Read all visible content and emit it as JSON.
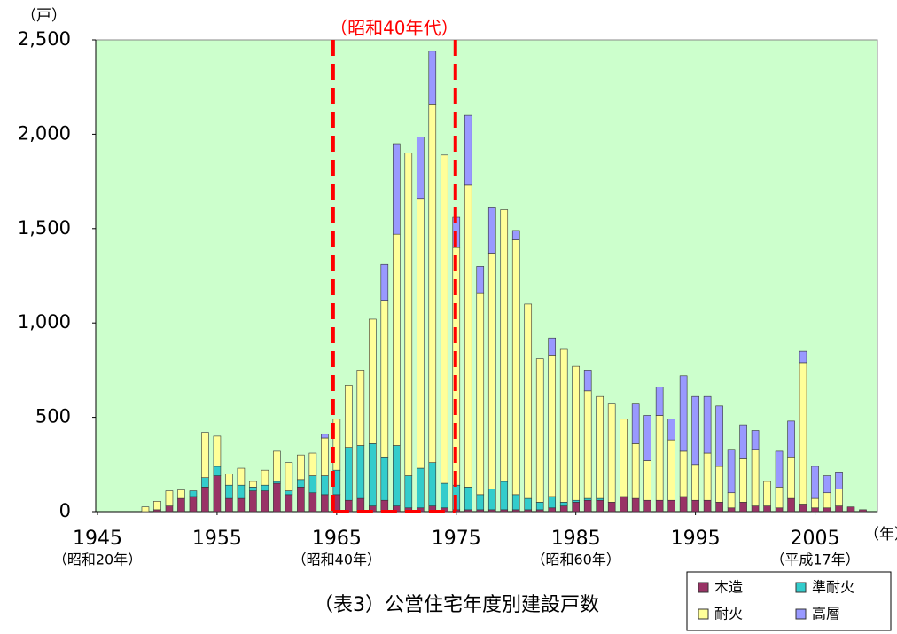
{
  "chart_data": {
    "type": "stacked_bar",
    "title": "（表3）公営住宅年度別建設戸数",
    "y_unit_label": "（戸）",
    "x_unit_label": "（年）",
    "highlight": {
      "label": "（昭和40年代）",
      "range": [
        1965,
        1975
      ],
      "color": "#ff0000"
    },
    "background": "#ccffcc",
    "xlim": [
      1945,
      2010
    ],
    "xticks": [
      1945,
      1955,
      1965,
      1975,
      1985,
      1995,
      2005
    ],
    "xtick_sublabels": [
      {
        "value": 1945,
        "label": "（昭和20年）"
      },
      {
        "value": 1965,
        "label": "（昭和40年）"
      },
      {
        "value": 1985,
        "label": "（昭和60年）"
      },
      {
        "value": 2005,
        "label": "（平成17年）"
      }
    ],
    "ylim": [
      0,
      2500
    ],
    "yticks": [
      0,
      500,
      {
        "value": 1000,
        "label": "1,000"
      },
      {
        "value": 1500,
        "label": "1,500"
      },
      {
        "value": 2000,
        "label": "2,000"
      },
      {
        "value": 2500,
        "label": "2,500"
      }
    ],
    "x": [
      1949,
      1950,
      1951,
      1952,
      1953,
      1954,
      1955,
      1956,
      1957,
      1958,
      1959,
      1960,
      1961,
      1962,
      1963,
      1964,
      1965,
      1966,
      1967,
      1968,
      1969,
      1970,
      1971,
      1972,
      1973,
      1974,
      1975,
      1976,
      1977,
      1978,
      1979,
      1980,
      1981,
      1982,
      1983,
      1984,
      1985,
      1986,
      1987,
      1988,
      1989,
      1990,
      1991,
      1992,
      1993,
      1994,
      1995,
      1996,
      1997,
      1998,
      1999,
      2000,
      2001,
      2002,
      2003,
      2004,
      2005,
      2006,
      2007,
      2008,
      2009
    ],
    "series": [
      {
        "name": "木造",
        "color": "#993366",
        "values": [
          0,
          10,
          30,
          70,
          80,
          130,
          190,
          70,
          70,
          110,
          110,
          150,
          90,
          130,
          100,
          90,
          90,
          60,
          70,
          30,
          60,
          30,
          20,
          20,
          30,
          20,
          10,
          10,
          10,
          10,
          10,
          10,
          10,
          10,
          20,
          30,
          50,
          60,
          60,
          50,
          80,
          70,
          60,
          60,
          60,
          80,
          60,
          60,
          50,
          20,
          50,
          30,
          30,
          20,
          70,
          40,
          20,
          20,
          30,
          25,
          10
        ]
      },
      {
        "name": "準耐火",
        "color": "#33cccc",
        "values": [
          0,
          0,
          0,
          0,
          30,
          50,
          50,
          70,
          70,
          20,
          30,
          10,
          20,
          40,
          90,
          100,
          130,
          280,
          280,
          330,
          230,
          320,
          170,
          210,
          230,
          130,
          130,
          120,
          80,
          110,
          150,
          80,
          60,
          40,
          60,
          20,
          10,
          10,
          10,
          0,
          0,
          0,
          0,
          0,
          0,
          0,
          0,
          0,
          0,
          0,
          0,
          0,
          0,
          0,
          0,
          0,
          0,
          0,
          0,
          0,
          0
        ]
      },
      {
        "name": "耐火",
        "color": "#ffff99",
        "values": [
          25,
          45,
          80,
          45,
          0,
          240,
          160,
          60,
          90,
          30,
          80,
          160,
          150,
          130,
          120,
          200,
          270,
          330,
          400,
          660,
          830,
          1120,
          1710,
          1430,
          1900,
          1740,
          1260,
          1600,
          1070,
          1250,
          1440,
          1350,
          1030,
          760,
          750,
          810,
          710,
          570,
          540,
          520,
          410,
          290,
          210,
          450,
          320,
          240,
          190,
          250,
          190,
          80,
          230,
          300,
          130,
          110,
          220,
          750,
          50,
          80,
          90,
          0,
          0
        ]
      },
      {
        "name": "高層",
        "color": "#9999ff",
        "values": [
          0,
          0,
          0,
          0,
          0,
          0,
          0,
          0,
          0,
          0,
          0,
          0,
          0,
          0,
          0,
          20,
          0,
          0,
          0,
          0,
          190,
          480,
          0,
          325,
          280,
          0,
          160,
          370,
          140,
          240,
          0,
          50,
          0,
          0,
          90,
          0,
          0,
          110,
          0,
          0,
          0,
          210,
          240,
          150,
          110,
          400,
          360,
          300,
          320,
          230,
          180,
          100,
          0,
          190,
          190,
          60,
          170,
          90,
          90,
          0,
          0
        ]
      }
    ]
  }
}
